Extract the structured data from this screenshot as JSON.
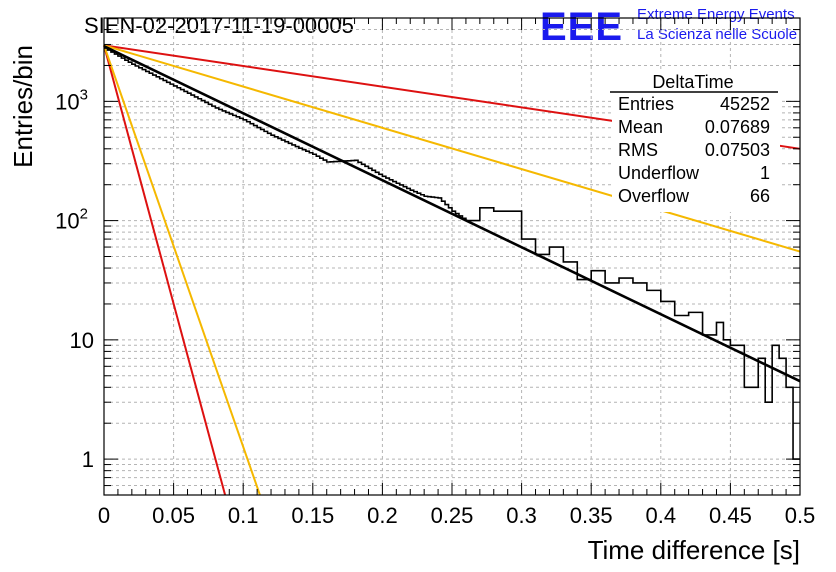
{
  "title": "SIEN-02-2017-11-19-00005",
  "logo": {
    "mark": "EEE",
    "line1": "Extreme Energy Events",
    "line2": "La Scienza nelle Scuole",
    "color": "#1a1aee"
  },
  "stats": {
    "name": "DeltaTime",
    "rows": [
      {
        "label": "Entries",
        "value": "45252"
      },
      {
        "label": "Mean",
        "value": "0.07689"
      },
      {
        "label": "RMS",
        "value": "0.07503"
      },
      {
        "label": "Underflow",
        "value": "1"
      },
      {
        "label": "Overflow",
        "value": "66"
      }
    ]
  },
  "chart_data": {
    "type": "line",
    "xlabel": "Time difference [s]",
    "ylabel": "Entries/bin",
    "xlim": [
      0,
      0.5
    ],
    "ylim": [
      0.5,
      5000
    ],
    "yscale": "log",
    "grid": true,
    "xticks": [
      {
        "v": 0,
        "label": "0"
      },
      {
        "v": 0.05,
        "label": "0.05"
      },
      {
        "v": 0.1,
        "label": "0.1"
      },
      {
        "v": 0.15,
        "label": "0.15"
      },
      {
        "v": 0.2,
        "label": "0.2"
      },
      {
        "v": 0.25,
        "label": "0.25"
      },
      {
        "v": 0.3,
        "label": "0.3"
      },
      {
        "v": 0.35,
        "label": "0.35"
      },
      {
        "v": 0.4,
        "label": "0.4"
      },
      {
        "v": 0.45,
        "label": "0.45"
      },
      {
        "v": 0.5,
        "label": "0.5"
      }
    ],
    "yticks": [
      {
        "v": 1,
        "label": "1"
      },
      {
        "v": 10,
        "label": "10"
      },
      {
        "v": 100,
        "label": "10",
        "exp": "2"
      },
      {
        "v": 1000,
        "label": "10",
        "exp": "3"
      }
    ],
    "histogram": {
      "color": "#000000",
      "bin_width": 0.0025,
      "points": [
        [
          0.0,
          2800
        ],
        [
          0.02,
          2050
        ],
        [
          0.04,
          1550
        ],
        [
          0.06,
          1170
        ],
        [
          0.08,
          880
        ],
        [
          0.1,
          700
        ],
        [
          0.12,
          520
        ],
        [
          0.14,
          405
        ],
        [
          0.15,
          360
        ],
        [
          0.16,
          310
        ],
        [
          0.18,
          320
        ],
        [
          0.2,
          235
        ],
        [
          0.22,
          180
        ],
        [
          0.23,
          160
        ],
        [
          0.24,
          155
        ],
        [
          0.25,
          120
        ],
        [
          0.26,
          100
        ],
        [
          0.27,
          128
        ],
        [
          0.28,
          120
        ],
        [
          0.3,
          70
        ],
        [
          0.31,
          52
        ],
        [
          0.32,
          60
        ],
        [
          0.33,
          45
        ],
        [
          0.34,
          32
        ],
        [
          0.35,
          38
        ],
        [
          0.36,
          30
        ],
        [
          0.37,
          33
        ],
        [
          0.38,
          30
        ],
        [
          0.39,
          26
        ],
        [
          0.4,
          21
        ],
        [
          0.41,
          16
        ],
        [
          0.42,
          17
        ],
        [
          0.43,
          11
        ],
        [
          0.44,
          14
        ],
        [
          0.445,
          10
        ],
        [
          0.45,
          9
        ],
        [
          0.46,
          4
        ],
        [
          0.47,
          7
        ],
        [
          0.475,
          3
        ],
        [
          0.48,
          9
        ],
        [
          0.485,
          7
        ],
        [
          0.49,
          4
        ],
        [
          0.495,
          1
        ],
        [
          0.5,
          9
        ]
      ]
    },
    "fit": {
      "color": "#000000",
      "x": [
        0,
        0.5
      ],
      "y": [
        2900,
        4.5
      ]
    },
    "reference_lines": [
      {
        "color": "#dd1111",
        "x": [
          0,
          0.5
        ],
        "y": [
          2950,
          400
        ]
      },
      {
        "color": "#f5b800",
        "x": [
          0,
          0.5
        ],
        "y": [
          2950,
          55
        ]
      },
      {
        "color": "#dd1111",
        "x": [
          0,
          0.087
        ],
        "y": [
          2950,
          0.5
        ]
      },
      {
        "color": "#f5b800",
        "x": [
          0,
          0.112
        ],
        "y": [
          2950,
          0.5
        ]
      }
    ]
  }
}
